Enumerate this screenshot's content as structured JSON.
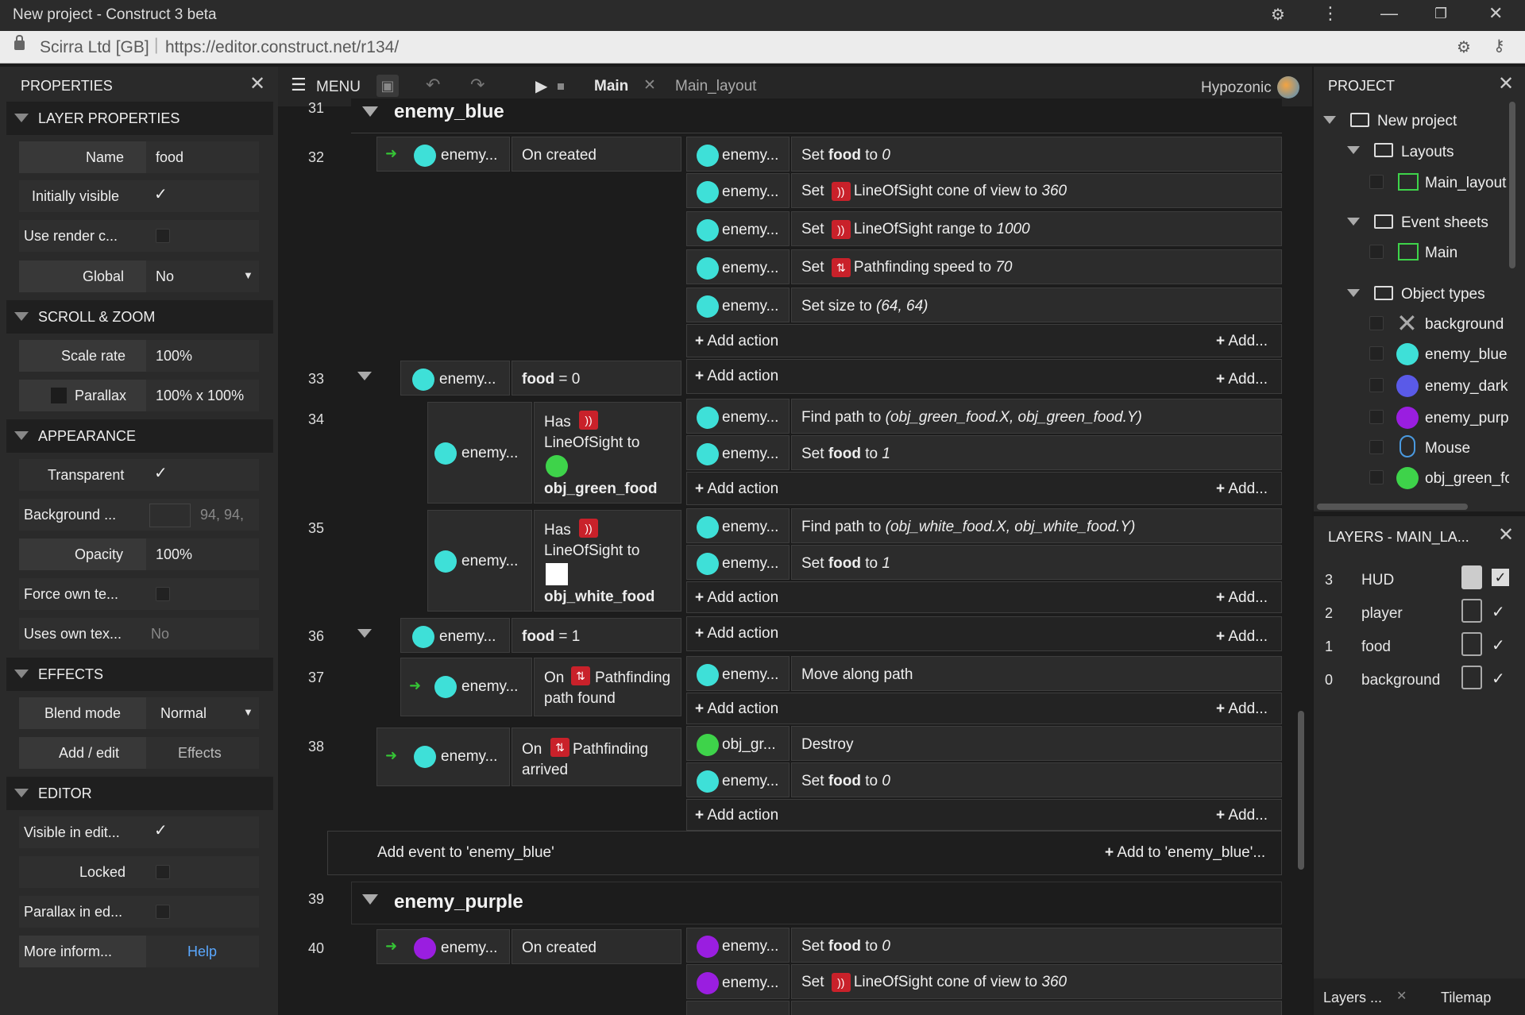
{
  "window": {
    "title": "New project - Construct 3 beta"
  },
  "address": {
    "site": "Scirra Ltd [GB]",
    "url": "https://editor.construct.net/r134/"
  },
  "properties": {
    "title": "PROPERTIES",
    "sections": {
      "layer": "LAYER PROPERTIES",
      "scroll": "SCROLL & ZOOM",
      "appearance": "APPEARANCE",
      "effects": "EFFECTS",
      "editor": "EDITOR"
    },
    "name_k": "Name",
    "name_v": "food",
    "init_vis": "Initially visible",
    "use_render": "Use render c...",
    "global_k": "Global",
    "global_v": "No",
    "scale_k": "Scale rate",
    "scale_v": "100%",
    "parallax_k": "Parallax",
    "parallax_v": "100% x 100%",
    "transparent": "Transparent",
    "bg_k": "Background ...",
    "bg_v": "94, 94,",
    "opacity_k": "Opacity",
    "opacity_v": "100%",
    "force": "Force own te...",
    "uses_k": "Uses own tex...",
    "uses_v": "No",
    "blend_k": "Blend mode",
    "blend_v": "Normal",
    "addedit_k": "Add / edit",
    "addedit_v": "Effects",
    "vis_edit": "Visible in edit...",
    "locked": "Locked",
    "parallax_ed": "Parallax in ed...",
    "more_k": "More inform...",
    "more_v": "Help"
  },
  "toolbar": {
    "menu": "MENU",
    "tab_main": "Main",
    "tab_layout": "Main_layout",
    "user": "Hypozonic"
  },
  "events": {
    "g1": "enemy_blue",
    "g2": "enemy_purple",
    "ln31": "31",
    "ln32": "32",
    "ln33": "33",
    "ln34": "34",
    "ln35": "35",
    "ln36": "36",
    "ln37": "37",
    "ln38": "38",
    "ln39": "39",
    "ln40": "40",
    "obj": "enemy...",
    "obj_gr": "obj_gr...",
    "on_created": "On created",
    "set_food_0_a": "Set ",
    "food": "food",
    "to": " to ",
    "zero": "0",
    "one": "1",
    "cone": "LineOfSight cone of view to ",
    "cone_v": "360",
    "range": "LineOfSight range to ",
    "range_v": "1000",
    "speed": "Pathfinding speed to ",
    "speed_v": "70",
    "size_a": "Set size to ",
    "size_v": "(64, 64)",
    "add_action": "Add action",
    "add_short": "Add...",
    "food_eq0_b": "food",
    "eq0": " = 0",
    "eq1": " = 1",
    "has": "Has",
    "los_to": "LineOfSight to",
    "green_food": "obj_green_food",
    "white_food": "obj_white_food",
    "find_a": "Find path to ",
    "find_green": "(obj_green_food.X, obj_green_food.Y)",
    "find_white": "(obj_white_food.X, obj_white_food.Y)",
    "on_pf": "Pathfinding",
    "path_found": "path found",
    "arrived": "arrived",
    "on": "On",
    "move": "Move along path",
    "destroy": "Destroy",
    "add_event": "Add event to 'enemy_blue'",
    "add_to": "Add to 'enemy_blue'..."
  },
  "project": {
    "title": "PROJECT",
    "root": "New project",
    "layouts": "Layouts",
    "main_layout": "Main_layout",
    "sheets": "Event sheets",
    "main": "Main",
    "types": "Object types",
    "t1": "background",
    "t2": "enemy_blue",
    "t3": "enemy_dark",
    "t4": "enemy_purp",
    "t5": "Mouse",
    "t6": "obj_green_fo"
  },
  "layers": {
    "title": "LAYERS - MAIN_LA...",
    "rows": [
      {
        "n": "3",
        "name": "HUD"
      },
      {
        "n": "2",
        "name": "player"
      },
      {
        "n": "1",
        "name": "food"
      },
      {
        "n": "0",
        "name": "background"
      }
    ],
    "tab1": "Layers ...",
    "tab2": "Tilemap"
  },
  "colors": {
    "cyan": "#3ee0d8",
    "purple": "#9a1ee0",
    "green": "#3ed34a",
    "dark": "#5a5ae8",
    "red": "#c9212a"
  }
}
